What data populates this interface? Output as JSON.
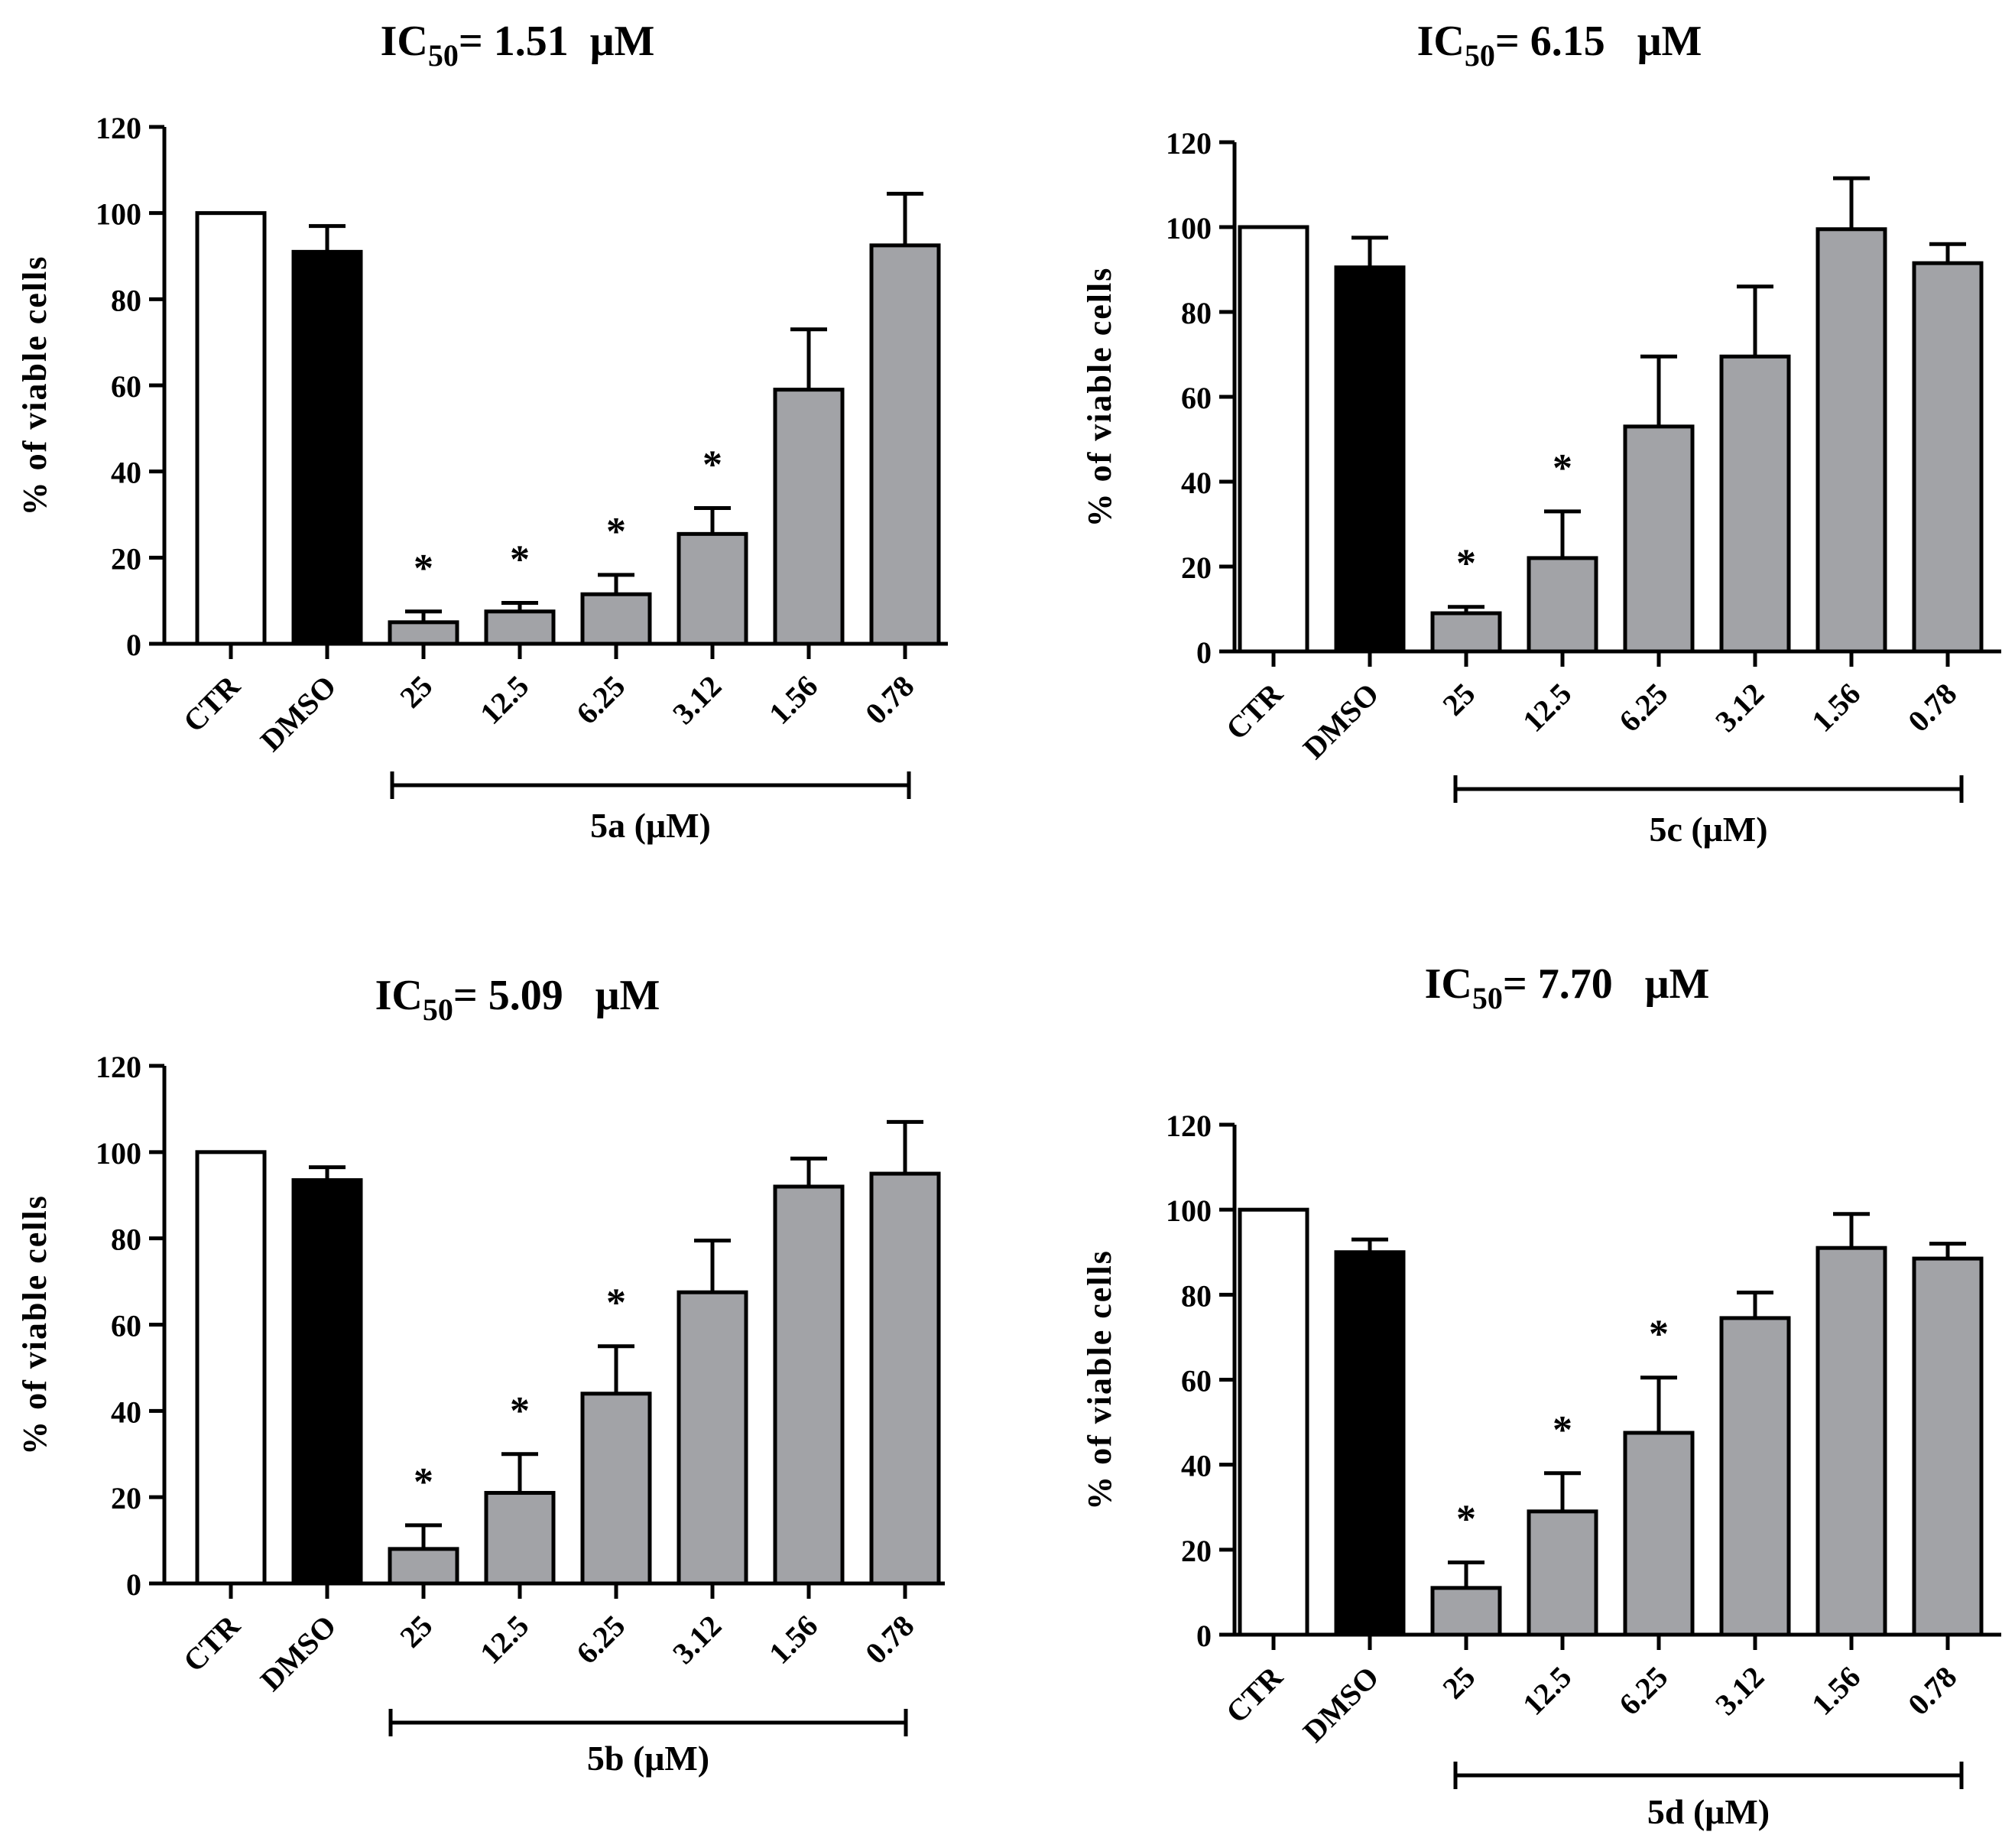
{
  "colors": {
    "ctr": "#ffffff",
    "dmso": "#000000",
    "compound": "#a2a3a7",
    "stroke": "#000000"
  },
  "chart_data": [
    {
      "type": "bar",
      "title_prefix": "IC",
      "title_sub": "50",
      "title_value": "= 1.51  μM",
      "ylabel": "% of viable cells",
      "xlabel": "5a (μM)",
      "ylim": [
        0,
        120
      ],
      "yticks": [
        "0",
        "20",
        "40",
        "60",
        "80",
        "100",
        "120"
      ],
      "categories": [
        "CTR",
        "DMSO",
        "25",
        "12.5",
        "6.25",
        "3.12",
        "1.56",
        "0.78"
      ],
      "values": [
        100,
        91,
        5,
        7.5,
        11.5,
        25.5,
        59,
        92.5
      ],
      "errors": [
        0,
        6,
        2.5,
        2,
        4.5,
        6,
        14,
        12
      ],
      "significant": [
        false,
        false,
        true,
        true,
        true,
        true,
        false,
        false
      ],
      "significance_mark": "*"
    },
    {
      "type": "bar",
      "title_prefix": "IC",
      "title_sub": "50",
      "title_value": "= 6.15   μM",
      "ylabel": "% of viable cells",
      "xlabel": "5c (μM)",
      "ylim": [
        0,
        120
      ],
      "yticks": [
        "0",
        "20",
        "40",
        "60",
        "80",
        "100",
        "120"
      ],
      "categories": [
        "CTR",
        "DMSO",
        "25",
        "12.5",
        "6.25",
        "3.12",
        "1.56",
        "0.78"
      ],
      "values": [
        100,
        90.5,
        9,
        22,
        53,
        69.5,
        99.5,
        91.5
      ],
      "errors": [
        0,
        7,
        1.5,
        11,
        16.5,
        16.5,
        12,
        4.5
      ],
      "significant": [
        false,
        false,
        true,
        true,
        false,
        false,
        false,
        false
      ],
      "significance_mark": "*"
    },
    {
      "type": "bar",
      "title_prefix": "IC",
      "title_sub": "50",
      "title_value": "= 5.09   μM",
      "ylabel": "% of viable cells",
      "xlabel": "5b (μM)",
      "ylim": [
        0,
        120
      ],
      "yticks": [
        "0",
        "20",
        "40",
        "60",
        "80",
        "100",
        "120"
      ],
      "categories": [
        "CTR",
        "DMSO",
        "25",
        "12.5",
        "6.25",
        "3.12",
        "1.56",
        "0.78"
      ],
      "values": [
        100,
        93.5,
        8,
        21,
        44,
        67.5,
        92,
        95
      ],
      "errors": [
        0,
        3,
        5.5,
        9,
        11,
        12,
        6.5,
        12
      ],
      "significant": [
        false,
        false,
        true,
        true,
        true,
        false,
        false,
        false
      ],
      "significance_mark": "*"
    },
    {
      "type": "bar",
      "title_prefix": "IC",
      "title_sub": "50",
      "title_value": "= 7.70   μM",
      "ylabel": "% of viable cells",
      "xlabel": "5d (μM)",
      "ylim": [
        0,
        120
      ],
      "yticks": [
        "0",
        "20",
        "40",
        "60",
        "80",
        "100",
        "120"
      ],
      "categories": [
        "CTR",
        "DMSO",
        "25",
        "12.5",
        "6.25",
        "3.12",
        "1.56",
        "0.78"
      ],
      "values": [
        100,
        90,
        11,
        29,
        47.5,
        74.5,
        91,
        88.5
      ],
      "errors": [
        0,
        3,
        6,
        9,
        13,
        6,
        8,
        3.5
      ],
      "significant": [
        false,
        false,
        true,
        true,
        true,
        false,
        false,
        false
      ],
      "significance_mark": "*"
    }
  ]
}
